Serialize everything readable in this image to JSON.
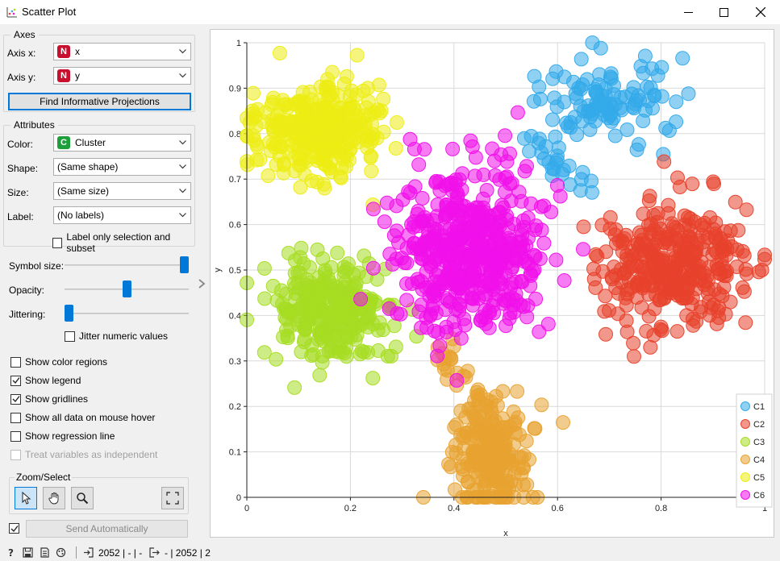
{
  "window": {
    "title": "Scatter Plot",
    "icon": "scatter-plot-icon",
    "controls": [
      "minimize-icon",
      "maximize-icon",
      "close-icon"
    ]
  },
  "axes_box": {
    "title": "Axes",
    "axis_x_label": "Axis x:",
    "axis_x_value": "x",
    "axis_x_badge": "N",
    "axis_y_label": "Axis y:",
    "axis_y_value": "y",
    "axis_y_badge": "N",
    "find_button": "Find Informative Projections"
  },
  "attributes_box": {
    "title": "Attributes",
    "color_label": "Color:",
    "color_value": "Cluster",
    "color_badge": "C",
    "shape_label": "Shape:",
    "shape_value": "(Same shape)",
    "size_label": "Size:",
    "size_value": "(Same size)",
    "label_label": "Label:",
    "label_value": "(No labels)",
    "label_only_selection": "Label only selection and subset"
  },
  "sliders": {
    "symbol_size_label": "Symbol size:",
    "symbol_size_level": 1.0,
    "opacity_label": "Opacity:",
    "opacity_level": 0.5,
    "jittering_label": "Jittering:",
    "jittering_level": 0.0,
    "jitter_numeric_label": "Jitter numeric values"
  },
  "options": [
    {
      "label": "Show color regions",
      "checked": false,
      "enabled": true
    },
    {
      "label": "Show legend",
      "checked": true,
      "enabled": true
    },
    {
      "label": "Show gridlines",
      "checked": true,
      "enabled": true
    },
    {
      "label": "Show all data on mouse hover",
      "checked": false,
      "enabled": true
    },
    {
      "label": "Show regression line",
      "checked": false,
      "enabled": true
    },
    {
      "label": "Treat variables as independent",
      "checked": false,
      "enabled": false
    }
  ],
  "zoom_select": {
    "title": "Zoom/Select",
    "tools": [
      "pointer-icon",
      "hand-pan-icon",
      "magnifier-icon",
      "fit-view-icon"
    ]
  },
  "send": {
    "auto_checked": true,
    "button_label": "Send Automatically"
  },
  "status": {
    "input_count": "2052 | - | -",
    "output_count": "- | 2052 | 2"
  },
  "colors": {
    "C1": "#33aaea",
    "C2": "#e8412b",
    "C3": "#a6dd22",
    "C4": "#e8a230",
    "C5": "#eded14",
    "C6": "#f010ea",
    "accent": "#0078d7"
  },
  "chart_data": {
    "type": "scatter",
    "xlabel": "x",
    "ylabel": "y",
    "xlim": [
      0,
      1
    ],
    "ylim": [
      0,
      1
    ],
    "x_ticks": [
      "0",
      "0.2",
      "0.4",
      "0.6",
      "0.8",
      "1"
    ],
    "y_ticks": [
      "0",
      "0.1",
      "0.2",
      "0.3",
      "0.4",
      "0.5",
      "0.6",
      "0.7",
      "0.8",
      "0.9",
      "1"
    ],
    "grid": true,
    "legend_position": "bottom-right",
    "series": [
      {
        "name": "C1",
        "color": "#33aaea",
        "center": [
          0.7,
          0.87
        ],
        "spread": [
          0.06,
          0.05
        ],
        "n": 110,
        "tail": {
          "from": [
            0.52,
            0.81
          ],
          "to": [
            0.68,
            0.66
          ],
          "n": 25
        }
      },
      {
        "name": "C2",
        "color": "#e8412b",
        "center": [
          0.82,
          0.51
        ],
        "spread": [
          0.07,
          0.06
        ],
        "n": 340
      },
      {
        "name": "C3",
        "color": "#a6dd22",
        "center": [
          0.16,
          0.41
        ],
        "spread": [
          0.06,
          0.05
        ],
        "n": 300
      },
      {
        "name": "C4",
        "color": "#e8a230",
        "center": [
          0.47,
          0.09
        ],
        "spread": [
          0.04,
          0.06
        ],
        "n": 210,
        "tail": {
          "from": [
            0.37,
            0.35
          ],
          "to": [
            0.45,
            0.18
          ],
          "n": 30
        }
      },
      {
        "name": "C5",
        "color": "#eded14",
        "center": [
          0.14,
          0.81
        ],
        "spread": [
          0.06,
          0.05
        ],
        "n": 320
      },
      {
        "name": "C6",
        "color": "#f010ea",
        "center": [
          0.43,
          0.54
        ],
        "spread": [
          0.07,
          0.09
        ],
        "n": 520
      }
    ]
  }
}
